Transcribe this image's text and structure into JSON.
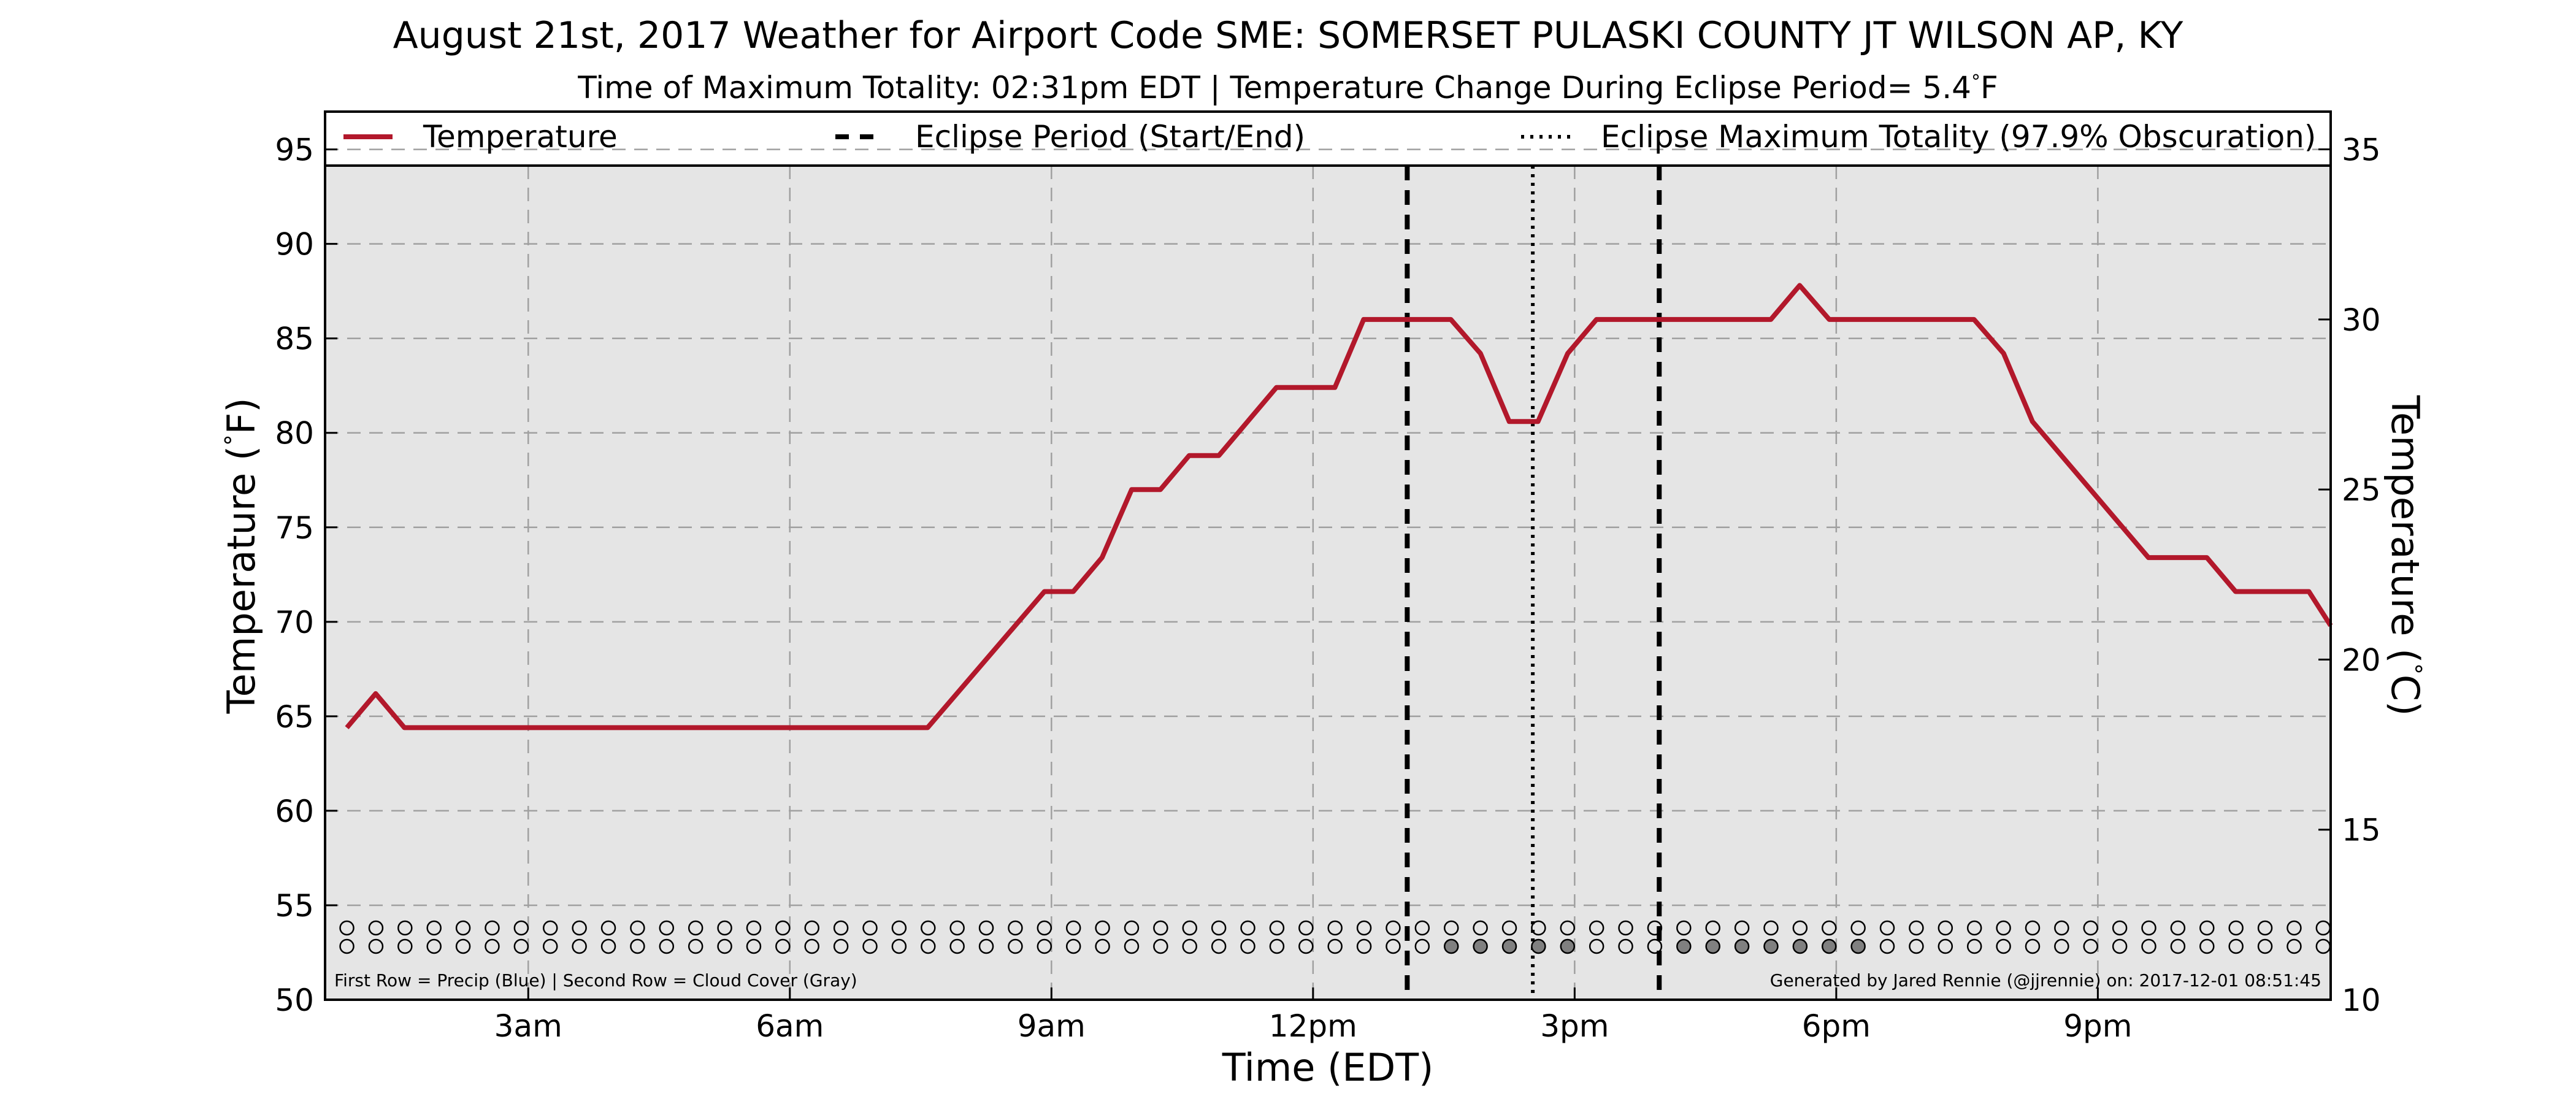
{
  "chart_data": {
    "type": "line",
    "title": "August 21st, 2017 Weather for Airport Code SME: SOMERSET PULASKI COUNTY JT WILSON AP, KY",
    "subtitle": "Time of Maximum Totality: 02:31pm EDT | Temperature Change During Eclipse Period= 5.4°F",
    "xlabel": "Time (EDT)",
    "ylabel": "Temperature (°F)",
    "ylabel_right": "Temperature (°C)",
    "xlim": [
      0.67,
      23.67
    ],
    "ylim": [
      50,
      97
    ],
    "ylim_right": [
      10,
      36.11
    ],
    "grid": true,
    "legend_position": "top",
    "x_ticks": [
      {
        "x": 3,
        "label": "3am"
      },
      {
        "x": 6,
        "label": "6am"
      },
      {
        "x": 9,
        "label": "9am"
      },
      {
        "x": 12,
        "label": "12pm"
      },
      {
        "x": 15,
        "label": "3pm"
      },
      {
        "x": 18,
        "label": "6pm"
      },
      {
        "x": 21,
        "label": "9pm"
      }
    ],
    "y_ticks": [
      50,
      55,
      60,
      65,
      70,
      75,
      80,
      85,
      90,
      95
    ],
    "y_ticks_right": [
      10,
      15,
      20,
      25,
      30,
      35
    ],
    "legend": [
      {
        "label": "Temperature",
        "style": "solid",
        "color": "#b2182b"
      },
      {
        "label": "Eclipse Period (Start/End)",
        "style": "dashed",
        "color": "#000000"
      },
      {
        "label": "Eclipse Maximum Totality (97.9% Obscuration)",
        "style": "dotted",
        "color": "#000000"
      }
    ],
    "series": [
      {
        "name": "Temperature",
        "color": "#b2182b",
        "x": [
          0.92,
          1.25,
          1.58,
          7.58,
          8.92,
          9.25,
          9.58,
          9.92,
          10.25,
          10.58,
          10.92,
          11.58,
          12.25,
          12.58,
          13.58,
          13.92,
          14.25,
          14.58,
          14.92,
          15.25,
          17.25,
          17.58,
          17.92,
          19.58,
          19.92,
          20.25,
          21.58,
          22.25,
          22.58,
          23.42,
          23.67
        ],
        "y": [
          64.4,
          66.2,
          64.4,
          64.4,
          71.6,
          71.6,
          73.4,
          77.0,
          77.0,
          78.8,
          78.8,
          82.4,
          82.4,
          86.0,
          86.0,
          84.2,
          80.6,
          80.6,
          84.2,
          86.0,
          86.0,
          87.8,
          86.0,
          86.0,
          84.2,
          80.6,
          73.4,
          73.4,
          71.6,
          71.6,
          69.8
        ]
      }
    ],
    "eclipse_start": 13.08,
    "eclipse_end": 15.97,
    "eclipse_max": 14.52,
    "obs_times_start": 0.92,
    "obs_times_step": 0.3333,
    "obs_count": 69,
    "precip_row": "",
    "cloud_gray_indices": [
      38,
      39,
      40,
      41,
      42,
      46,
      47,
      48,
      49,
      50,
      51,
      52
    ],
    "footnote_left": "First Row = Precip (Blue) | Second Row = Cloud Cover (Gray)",
    "footnote_right": "Generated by Jared Rennie (@jjrennie) on: 2017-12-01 08:51:45"
  },
  "colors": {
    "plot_bg": "#e5e5e5",
    "line": "#b2182b",
    "grid": "#a0a0a0",
    "cloud_gray": "#808080"
  }
}
